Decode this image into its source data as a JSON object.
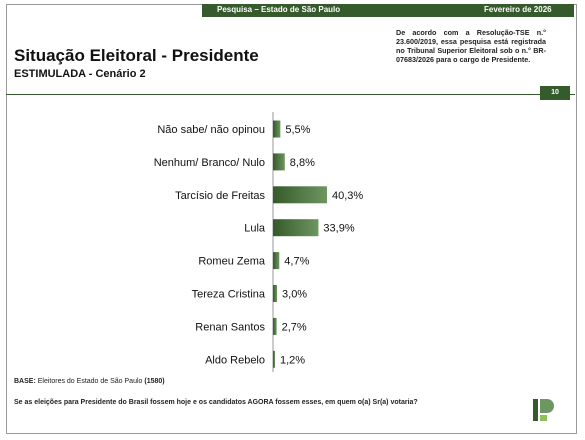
{
  "header": {
    "survey_label": "Pesquisa – Estado de São Paulo",
    "date_label": "Fevereiro de 2026",
    "page_number": "10"
  },
  "title": "Situação Eleitoral - Presidente",
  "subtitle": "ESTIMULADA - Cenário 2",
  "registration_note": "De acordo com a Resolução-TSE n.° 23.600/2019, essa pesquisa está registrada no Tribunal Superior Eleitoral sob o n.° BR-07683/2026 para o cargo de Presidente.",
  "footer": {
    "base_label": "BASE:",
    "base_text": "Eleitores do Estado de São Paulo",
    "base_count": "(1580)",
    "question": "Se as eleições para Presidente do Brasil fossem hoje e os candidatos AGORA fossem esses, em quem o(a) Sr(a) votaria?"
  },
  "colors": {
    "bar_dark": "#355a2b",
    "bar_light": "#6e9660",
    "accent": "#355a2b"
  },
  "chart_data": {
    "type": "bar",
    "orientation": "horizontal",
    "categories": [
      "Não sabe/ não opinou",
      "Nenhum/ Branco/ Nulo",
      "Tarcísio de Freitas",
      "Lula",
      "Romeu Zema",
      "Tereza Cristina",
      "Renan Santos",
      "Aldo Rebelo"
    ],
    "values": [
      5.5,
      8.8,
      40.3,
      33.9,
      4.7,
      3.0,
      2.7,
      1.2
    ],
    "value_labels": [
      "5,5%",
      "8,8%",
      "40,3%",
      "33,9%",
      "4,7%",
      "3,0%",
      "2,7%",
      "1,2%"
    ],
    "unit": "%",
    "xlim": [
      0,
      100
    ],
    "grid": false,
    "legend": "none"
  }
}
